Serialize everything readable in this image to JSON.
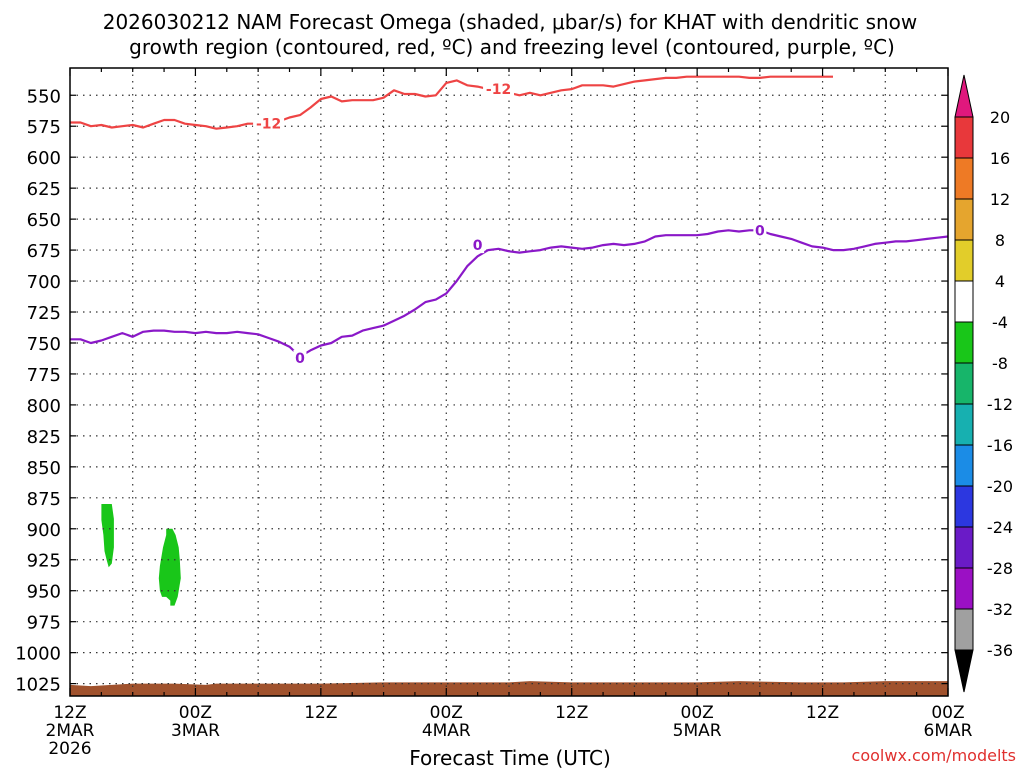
{
  "chart_data": {
    "type": "heatmap",
    "title_lines": [
      "2026030212 NAM Forecast Omega (shaded, μbar/s) for KHAT with dendritic snow",
      "growth region (contoured, red, ºC) and freezing level (contoured, purple, ºC)"
    ],
    "xlabel": "Forecast Time (UTC)",
    "credit": "coolwx.com/modelts",
    "x_hours_range": [
      0,
      84
    ],
    "y_levels": [
      "550",
      "575",
      "600",
      "625",
      "650",
      "675",
      "700",
      "725",
      "750",
      "775",
      "800",
      "825",
      "850",
      "875",
      "900",
      "925",
      "950",
      "975",
      "1000",
      "1025"
    ],
    "y_range_mb": [
      528,
      1035
    ],
    "x_ticks": [
      {
        "hour": 0,
        "lines": [
          "12Z",
          "2MAR",
          "2026"
        ]
      },
      {
        "hour": 12,
        "lines": [
          "00Z",
          "3MAR"
        ]
      },
      {
        "hour": 24,
        "lines": [
          "12Z"
        ]
      },
      {
        "hour": 36,
        "lines": [
          "00Z",
          "4MAR"
        ]
      },
      {
        "hour": 48,
        "lines": [
          "12Z"
        ]
      },
      {
        "hour": 60,
        "lines": [
          "00Z",
          "5MAR"
        ]
      },
      {
        "hour": 72,
        "lines": [
          "12Z"
        ]
      },
      {
        "hour": 84,
        "lines": [
          "00Z",
          "6MAR"
        ]
      }
    ],
    "colorbar": {
      "labels": [
        "20",
        "16",
        "12",
        "8",
        "4",
        "-4",
        "-8",
        "-12",
        "-16",
        "-20",
        "-24",
        "-28",
        "-32",
        "-36"
      ],
      "colors": [
        "#e8383b",
        "#ee7a25",
        "#e5a52e",
        "#e2cd2a",
        "#ffffff",
        "#19c619",
        "#17b56a",
        "#17b0b0",
        "#1b8ce6",
        "#2c37e0",
        "#6a1bc7",
        "#9b10c4",
        "#a0a0a0"
      ],
      "top_arrow_color": "#e0187d",
      "bottom_arrow_color": "#000000"
    },
    "series": [
      {
        "name": "dendritic snow growth region",
        "color": "#ee4444",
        "label": "-12",
        "label_at": [
          {
            "hour": 19,
            "mb": 573
          },
          {
            "hour": 41,
            "mb": 545
          }
        ],
        "points": [
          [
            0,
            572
          ],
          [
            1,
            572
          ],
          [
            2,
            575
          ],
          [
            3,
            574
          ],
          [
            4,
            576
          ],
          [
            5,
            575
          ],
          [
            6,
            574
          ],
          [
            7,
            576
          ],
          [
            8,
            573
          ],
          [
            9,
            570
          ],
          [
            10,
            570
          ],
          [
            11,
            573
          ],
          [
            12,
            574
          ],
          [
            13,
            575
          ],
          [
            14,
            577
          ],
          [
            15,
            576
          ],
          [
            16,
            575
          ],
          [
            17,
            573
          ],
          [
            18,
            573
          ],
          [
            19,
            573
          ],
          [
            20,
            571
          ],
          [
            21,
            568
          ],
          [
            22,
            566
          ],
          [
            23,
            560
          ],
          [
            24,
            553
          ],
          [
            25,
            551
          ],
          [
            26,
            555
          ],
          [
            27,
            554
          ],
          [
            28,
            554
          ],
          [
            29,
            554
          ],
          [
            30,
            552
          ],
          [
            31,
            546
          ],
          [
            32,
            549
          ],
          [
            33,
            549
          ],
          [
            34,
            551
          ],
          [
            35,
            550
          ],
          [
            36,
            540
          ],
          [
            37,
            538
          ],
          [
            38,
            542
          ],
          [
            39,
            543
          ],
          [
            40,
            545
          ],
          [
            41,
            545
          ],
          [
            42,
            548
          ],
          [
            43,
            550
          ],
          [
            44,
            548
          ],
          [
            45,
            550
          ],
          [
            46,
            548
          ],
          [
            47,
            546
          ],
          [
            48,
            545
          ],
          [
            49,
            542
          ],
          [
            50,
            542
          ],
          [
            51,
            542
          ],
          [
            52,
            543
          ],
          [
            53,
            541
          ],
          [
            54,
            539
          ],
          [
            55,
            538
          ],
          [
            56,
            537
          ],
          [
            57,
            536
          ],
          [
            58,
            536
          ],
          [
            59,
            535
          ],
          [
            60,
            535
          ],
          [
            61,
            535
          ],
          [
            62,
            535
          ],
          [
            63,
            535
          ],
          [
            64,
            535
          ],
          [
            65,
            536
          ],
          [
            66,
            536
          ],
          [
            67,
            535
          ],
          [
            68,
            535
          ],
          [
            69,
            535
          ],
          [
            70,
            535
          ],
          [
            71,
            535
          ],
          [
            72,
            535
          ],
          [
            73,
            535
          ]
        ]
      },
      {
        "name": "freezing level",
        "color": "#8a18c8",
        "label": "0",
        "label_at": [
          {
            "hour": 22,
            "mb": 762
          },
          {
            "hour": 39,
            "mb": 671
          },
          {
            "hour": 66,
            "mb": 659
          }
        ],
        "points": [
          [
            0,
            747
          ],
          [
            1,
            747
          ],
          [
            2,
            750
          ],
          [
            3,
            748
          ],
          [
            4,
            745
          ],
          [
            5,
            742
          ],
          [
            6,
            745
          ],
          [
            7,
            741
          ],
          [
            8,
            740
          ],
          [
            9,
            740
          ],
          [
            10,
            741
          ],
          [
            11,
            741
          ],
          [
            12,
            742
          ],
          [
            13,
            741
          ],
          [
            14,
            742
          ],
          [
            15,
            742
          ],
          [
            16,
            741
          ],
          [
            17,
            742
          ],
          [
            18,
            743
          ],
          [
            19,
            746
          ],
          [
            20,
            749
          ],
          [
            21,
            753
          ],
          [
            22,
            761
          ],
          [
            23,
            756
          ],
          [
            24,
            752
          ],
          [
            25,
            750
          ],
          [
            26,
            745
          ],
          [
            27,
            744
          ],
          [
            28,
            740
          ],
          [
            29,
            738
          ],
          [
            30,
            736
          ],
          [
            31,
            732
          ],
          [
            32,
            728
          ],
          [
            33,
            723
          ],
          [
            34,
            717
          ],
          [
            35,
            715
          ],
          [
            36,
            710
          ],
          [
            37,
            700
          ],
          [
            38,
            688
          ],
          [
            39,
            680
          ],
          [
            40,
            675
          ],
          [
            41,
            674
          ],
          [
            42,
            676
          ],
          [
            43,
            677
          ],
          [
            44,
            676
          ],
          [
            45,
            675
          ],
          [
            46,
            673
          ],
          [
            47,
            672
          ],
          [
            48,
            673
          ],
          [
            49,
            674
          ],
          [
            50,
            673
          ],
          [
            51,
            671
          ],
          [
            52,
            670
          ],
          [
            53,
            671
          ],
          [
            54,
            670
          ],
          [
            55,
            668
          ],
          [
            56,
            664
          ],
          [
            57,
            663
          ],
          [
            58,
            663
          ],
          [
            59,
            663
          ],
          [
            60,
            663
          ],
          [
            61,
            662
          ],
          [
            62,
            660
          ],
          [
            63,
            659
          ],
          [
            64,
            660
          ],
          [
            65,
            659
          ],
          [
            66,
            659
          ],
          [
            67,
            662
          ],
          [
            68,
            664
          ],
          [
            69,
            666
          ],
          [
            70,
            669
          ],
          [
            71,
            672
          ],
          [
            72,
            673
          ],
          [
            73,
            675
          ],
          [
            74,
            675
          ],
          [
            75,
            674
          ],
          [
            76,
            672
          ],
          [
            77,
            670
          ],
          [
            78,
            669
          ],
          [
            79,
            668
          ],
          [
            80,
            668
          ],
          [
            81,
            667
          ],
          [
            82,
            666
          ],
          [
            83,
            665
          ],
          [
            84,
            664
          ]
        ]
      }
    ],
    "shaded_regions": [
      {
        "value_range": [
          -8,
          -4
        ],
        "color": "#19c619",
        "polygon": [
          [
            3,
            880
          ],
          [
            4,
            880
          ],
          [
            4.2,
            892
          ],
          [
            4.2,
            915
          ],
          [
            4,
            928
          ],
          [
            3.7,
            931
          ],
          [
            3.5,
            925
          ],
          [
            3.3,
            918
          ],
          [
            3.2,
            905
          ],
          [
            3,
            893
          ],
          [
            3,
            880
          ]
        ]
      },
      {
        "value_range": [
          -8,
          -4
        ],
        "color": "#19c619",
        "polygon": [
          [
            9.2,
            900
          ],
          [
            9.8,
            900
          ],
          [
            10.1,
            905
          ],
          [
            10.4,
            915
          ],
          [
            10.5,
            925
          ],
          [
            10.6,
            940
          ],
          [
            10.3,
            955
          ],
          [
            10.0,
            962
          ],
          [
            9.6,
            962
          ],
          [
            9.6,
            958
          ],
          [
            9.2,
            955
          ],
          [
            8.8,
            955
          ],
          [
            8.6,
            950
          ],
          [
            8.5,
            940
          ],
          [
            8.6,
            930
          ],
          [
            8.9,
            915
          ],
          [
            9.2,
            905
          ],
          [
            9.2,
            900
          ]
        ]
      }
    ],
    "terrain": {
      "color": "#a0522d",
      "surface_mb": [
        [
          0,
          1026
        ],
        [
          2,
          1027
        ],
        [
          4,
          1026
        ],
        [
          6,
          1025
        ],
        [
          10,
          1025
        ],
        [
          13,
          1026
        ],
        [
          14,
          1025
        ],
        [
          16,
          1025
        ],
        [
          20,
          1025
        ],
        [
          24,
          1025
        ],
        [
          30,
          1024
        ],
        [
          36,
          1024
        ],
        [
          42,
          1024
        ],
        [
          44,
          1023
        ],
        [
          48,
          1024
        ],
        [
          52,
          1024
        ],
        [
          60,
          1024
        ],
        [
          64,
          1023
        ],
        [
          70,
          1024
        ],
        [
          74,
          1024
        ],
        [
          78,
          1023
        ],
        [
          84,
          1023
        ]
      ]
    }
  }
}
